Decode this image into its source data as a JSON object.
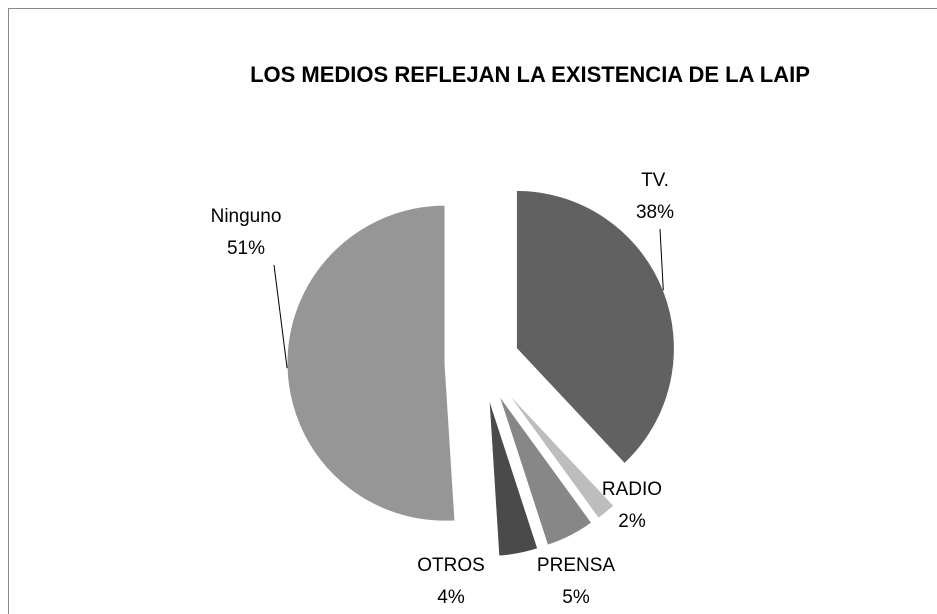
{
  "chart_data": {
    "type": "pie",
    "title": "LOS MEDIOS REFLEJAN LA EXISTENCIA DE LA LAIP",
    "categories": [
      "TV.",
      "RADIO",
      "PRENSA",
      "OTROS",
      "Ninguno"
    ],
    "values": [
      38,
      2,
      5,
      4,
      51
    ],
    "value_labels": [
      "38%",
      "2%",
      "5%",
      "4%",
      "51%"
    ],
    "colors": [
      "#616161",
      "#bdbdbd",
      "#878787",
      "#4a4a4a",
      "#969696"
    ]
  }
}
